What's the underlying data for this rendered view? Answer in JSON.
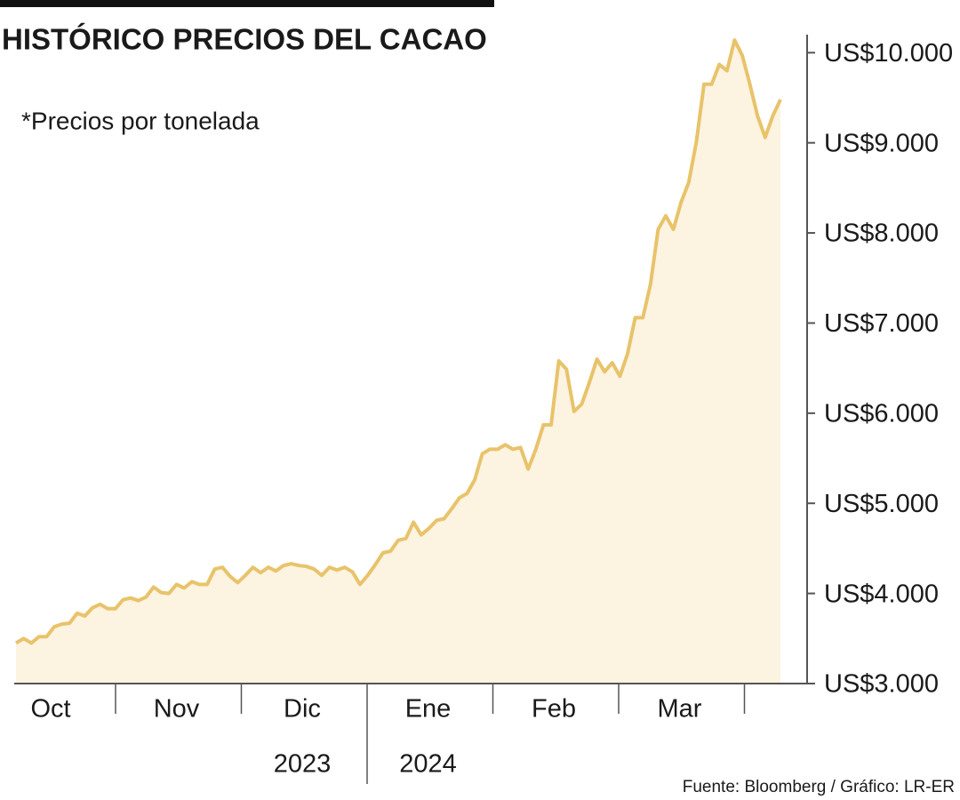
{
  "chart_data": {
    "type": "area",
    "title": "HISTÓRICO PRECIOS DEL CACAO",
    "subtitle": "*Precios por tonelada",
    "source": "Fuente: Bloomberg / Gráfico: LR-ER",
    "months": [
      "Oct",
      "Nov",
      "Dic",
      "Ene",
      "Feb",
      "Mar"
    ],
    "years": [
      "2023",
      "2024"
    ],
    "color": "#e8c36a",
    "fill": "#fdf3e1",
    "values": [
      3450,
      3500,
      3450,
      3520,
      3520,
      3630,
      3660,
      3670,
      3780,
      3750,
      3840,
      3880,
      3830,
      3830,
      3930,
      3950,
      3920,
      3960,
      4070,
      4010,
      4000,
      4100,
      4060,
      4130,
      4100,
      4100,
      4270,
      4290,
      4190,
      4120,
      4200,
      4290,
      4230,
      4290,
      4250,
      4310,
      4330,
      4310,
      4300,
      4270,
      4200,
      4290,
      4260,
      4290,
      4240,
      4100,
      4200,
      4320,
      4450,
      4470,
      4590,
      4610,
      4790,
      4650,
      4720,
      4810,
      4830,
      4940,
      5060,
      5110,
      5260,
      5550,
      5600,
      5600,
      5650,
      5600,
      5620,
      5380,
      5600,
      5870,
      5870,
      6580,
      6490,
      6020,
      6100,
      6340,
      6600,
      6460,
      6560,
      6410,
      6660,
      7060,
      7060,
      7430,
      8040,
      8190,
      8040,
      8340,
      8560,
      9010,
      9650,
      9650,
      9870,
      9800,
      10140,
      9970,
      9650,
      9300,
      9060,
      9300,
      9480
    ],
    "ylim": [
      3000,
      10200
    ],
    "yticks": [
      {
        "value": 3000,
        "label": "US$3.000"
      },
      {
        "value": 4000,
        "label": "US$4.000"
      },
      {
        "value": 5000,
        "label": "US$5.000"
      },
      {
        "value": 6000,
        "label": "US$6.000"
      },
      {
        "value": 7000,
        "label": "US$7.000"
      },
      {
        "value": 8000,
        "label": "US$8.000"
      },
      {
        "value": 9000,
        "label": "US$9.000"
      },
      {
        "value": 10000,
        "label": "US$10.000"
      }
    ]
  }
}
